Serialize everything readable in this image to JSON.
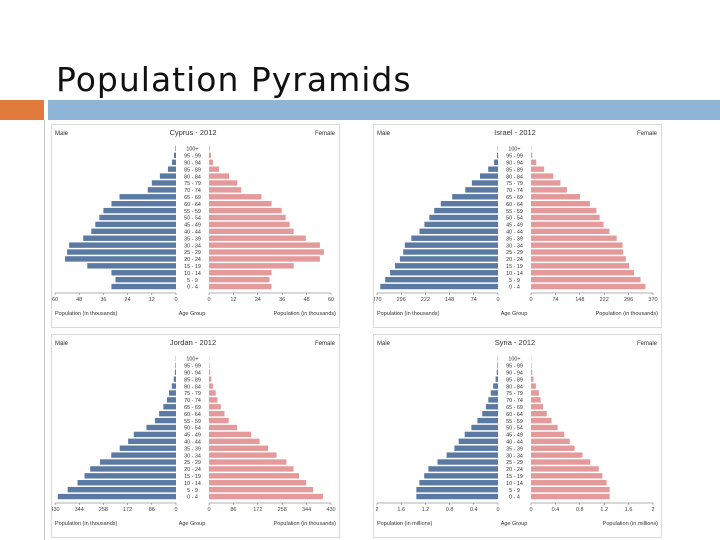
{
  "slide": {
    "title": "Population Pyramids"
  },
  "colors": {
    "male": "#5a7aa3",
    "female": "#e49a9a",
    "accent": "#e07b3c",
    "bar": "#8fb4d5"
  },
  "chart_data": [
    {
      "type": "bar",
      "orientation": "horizontal-pyramid",
      "title": "Cyprus - 2012",
      "male_label": "Male",
      "female_label": "Female",
      "center_label": "Age Group",
      "xlabel_left": "Population (in thousands)",
      "xlabel_right": "Population (in thousands)",
      "categories": [
        "0 - 4",
        "5 - 9",
        "10 - 14",
        "15 - 19",
        "20 - 24",
        "25 - 29",
        "30 - 34",
        "35 - 39",
        "40 - 44",
        "45 - 49",
        "50 - 54",
        "55 - 59",
        "60 - 64",
        "65 - 69",
        "70 - 74",
        "75 - 79",
        "80 - 84",
        "85 - 89",
        "90 - 94",
        "95 - 99",
        "100+"
      ],
      "xmax": 60,
      "ticks_left": [
        "60",
        "48",
        "36",
        "24",
        "12",
        "0"
      ],
      "ticks_right": [
        "0",
        "12",
        "24",
        "36",
        "48",
        "60"
      ],
      "series": [
        {
          "name": "Male",
          "values": [
            32,
            30,
            32,
            44,
            55,
            54,
            53,
            46,
            42,
            40,
            38,
            36,
            32,
            28,
            14,
            12,
            8,
            4,
            2,
            1,
            0.3
          ]
        },
        {
          "name": "Female",
          "values": [
            31,
            30,
            31,
            42,
            55,
            57,
            55,
            48,
            42,
            40,
            38,
            36,
            31,
            26,
            16,
            14,
            10,
            5,
            2,
            1,
            0.4
          ]
        }
      ]
    },
    {
      "type": "bar",
      "orientation": "horizontal-pyramid",
      "title": "Israel - 2012",
      "male_label": "Male",
      "female_label": "Female",
      "center_label": "Age Group",
      "xlabel_left": "Population (in thousands)",
      "xlabel_right": "Population (in thousands)",
      "categories": [
        "0 - 4",
        "5 - 9",
        "10 - 14",
        "15 - 19",
        "20 - 24",
        "25 - 29",
        "30 - 34",
        "35 - 39",
        "40 - 44",
        "45 - 49",
        "50 - 54",
        "55 - 59",
        "60 - 64",
        "65 - 69",
        "70 - 74",
        "75 - 79",
        "80 - 84",
        "85 - 89",
        "90 - 94",
        "95 - 99",
        "100+"
      ],
      "xmax": 370,
      "ticks_left": [
        "370",
        "296",
        "222",
        "148",
        "74",
        "0"
      ],
      "ticks_right": [
        "0",
        "74",
        "148",
        "222",
        "296",
        "370"
      ],
      "series": [
        {
          "name": "Male",
          "values": [
            360,
            345,
            330,
            315,
            300,
            290,
            285,
            265,
            240,
            225,
            210,
            195,
            175,
            140,
            100,
            80,
            55,
            30,
            12,
            3,
            1
          ]
        },
        {
          "name": "Female",
          "values": [
            350,
            335,
            315,
            300,
            290,
            282,
            280,
            262,
            240,
            222,
            210,
            200,
            180,
            150,
            110,
            90,
            68,
            40,
            16,
            4,
            1
          ]
        }
      ]
    },
    {
      "type": "bar",
      "orientation": "horizontal-pyramid",
      "title": "Jordan - 2012",
      "male_label": "Male",
      "female_label": "Female",
      "center_label": "Age Group",
      "xlabel_left": "Population (in thousands)",
      "xlabel_right": "Population (in thousands)",
      "categories": [
        "0 - 4",
        "5 - 9",
        "10 - 14",
        "15 - 19",
        "20 - 24",
        "25 - 29",
        "30 - 34",
        "35 - 39",
        "40 - 44",
        "45 - 49",
        "50 - 54",
        "55 - 59",
        "60 - 64",
        "65 - 69",
        "70 - 74",
        "75 - 79",
        "80 - 84",
        "85 - 89",
        "90 - 94",
        "95 - 99",
        "100+"
      ],
      "xmax": 430,
      "ticks_left": [
        "430",
        "344",
        "258",
        "172",
        "86",
        "0"
      ],
      "ticks_right": [
        "0",
        "86",
        "172",
        "258",
        "344",
        "430"
      ],
      "series": [
        {
          "name": "Male",
          "values": [
            420,
            385,
            350,
            325,
            305,
            270,
            230,
            200,
            170,
            150,
            105,
            75,
            60,
            45,
            32,
            25,
            15,
            8,
            4,
            2,
            1
          ]
        },
        {
          "name": "Female",
          "values": [
            405,
            370,
            345,
            320,
            300,
            275,
            240,
            210,
            180,
            150,
            100,
            70,
            55,
            42,
            30,
            24,
            14,
            8,
            4,
            2,
            1
          ]
        }
      ]
    },
    {
      "type": "bar",
      "orientation": "horizontal-pyramid",
      "title": "Syria - 2012",
      "male_label": "Male",
      "female_label": "Female",
      "center_label": "Age Group",
      "xlabel_left": "Population (in millions)",
      "xlabel_right": "Population (in millions)",
      "categories": [
        "0 - 4",
        "5 - 9",
        "10 - 14",
        "15 - 19",
        "20 - 24",
        "25 - 29",
        "30 - 34",
        "35 - 39",
        "40 - 44",
        "45 - 49",
        "50 - 54",
        "55 - 59",
        "60 - 64",
        "65 - 69",
        "70 - 74",
        "75 - 79",
        "80 - 84",
        "85 - 89",
        "90 - 94",
        "95 - 99",
        "100+"
      ],
      "xmax": 2,
      "ticks_left": [
        "2",
        "1.6",
        "1.2",
        "0.8",
        "0.4",
        "0"
      ],
      "ticks_right": [
        "0",
        "0.4",
        "0.8",
        "1.2",
        "1.6",
        "2"
      ],
      "series": [
        {
          "name": "Male",
          "values": [
            1.35,
            1.35,
            1.3,
            1.22,
            1.15,
            1.0,
            0.85,
            0.72,
            0.65,
            0.55,
            0.44,
            0.34,
            0.26,
            0.2,
            0.16,
            0.12,
            0.08,
            0.04,
            0.02,
            0.01,
            0.005
          ]
        },
        {
          "name": "Female",
          "values": [
            1.3,
            1.3,
            1.25,
            1.18,
            1.12,
            0.98,
            0.85,
            0.72,
            0.64,
            0.55,
            0.44,
            0.34,
            0.26,
            0.2,
            0.16,
            0.13,
            0.08,
            0.04,
            0.02,
            0.01,
            0.005
          ]
        }
      ]
    }
  ]
}
